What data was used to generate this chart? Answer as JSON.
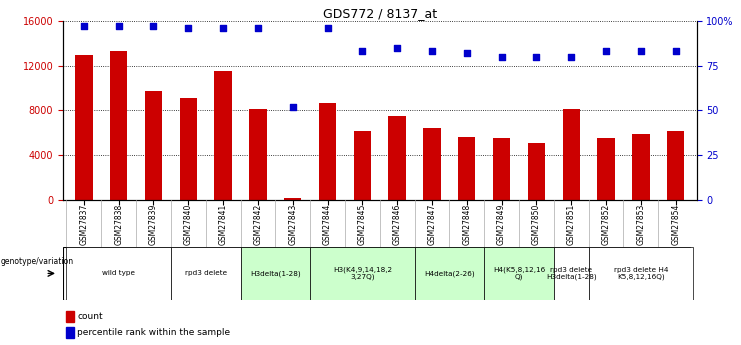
{
  "title": "GDS772 / 8137_at",
  "samples": [
    "GSM27837",
    "GSM27838",
    "GSM27839",
    "GSM27840",
    "GSM27841",
    "GSM27842",
    "GSM27843",
    "GSM27844",
    "GSM27845",
    "GSM27846",
    "GSM27847",
    "GSM27848",
    "GSM27849",
    "GSM27850",
    "GSM27851",
    "GSM27852",
    "GSM27853",
    "GSM27854"
  ],
  "counts": [
    12900,
    13300,
    9700,
    9100,
    11500,
    8100,
    200,
    8700,
    6200,
    7500,
    6400,
    5600,
    5500,
    5100,
    8100,
    5500,
    5900,
    6200
  ],
  "percentile": [
    97,
    97,
    97,
    96,
    96,
    96,
    52,
    96,
    83,
    85,
    83,
    82,
    80,
    80,
    80,
    83,
    83,
    83
  ],
  "bar_color": "#cc0000",
  "dot_color": "#0000cc",
  "ylim_left": [
    0,
    16000
  ],
  "ylim_right": [
    0,
    100
  ],
  "yticks_left": [
    0,
    4000,
    8000,
    12000,
    16000
  ],
  "yticks_right": [
    0,
    25,
    50,
    75,
    100
  ],
  "ytick_labels_right": [
    "0",
    "25",
    "50",
    "75",
    "100%"
  ],
  "group_info": [
    {
      "label": "wild type",
      "cols": [
        0,
        1,
        2
      ],
      "color": "#ffffff"
    },
    {
      "label": "rpd3 delete",
      "cols": [
        3,
        4
      ],
      "color": "#ffffff"
    },
    {
      "label": "H3delta(1-28)",
      "cols": [
        5,
        6
      ],
      "color": "#ccffcc"
    },
    {
      "label": "H3(K4,9,14,18,2\n3,27Q)",
      "cols": [
        7,
        8,
        9
      ],
      "color": "#ccffcc"
    },
    {
      "label": "H4delta(2-26)",
      "cols": [
        10,
        11
      ],
      "color": "#ccffcc"
    },
    {
      "label": "H4(K5,8,12,16\nQ)",
      "cols": [
        12,
        13
      ],
      "color": "#ccffcc"
    },
    {
      "label": "rpd3 delete\nH3delta(1-28)",
      "cols": [
        14
      ],
      "color": "#ffffff"
    },
    {
      "label": "rpd3 delete H4\nK5,8,12,16Q)",
      "cols": [
        15,
        16,
        17
      ],
      "color": "#ffffff"
    }
  ],
  "bar_width": 0.5,
  "dot_size": 18,
  "grid_linestyle": "dotted",
  "legend_label_count": "count",
  "legend_label_pct": "percentile rank within the sample",
  "genotype_label": "genotype/variation"
}
